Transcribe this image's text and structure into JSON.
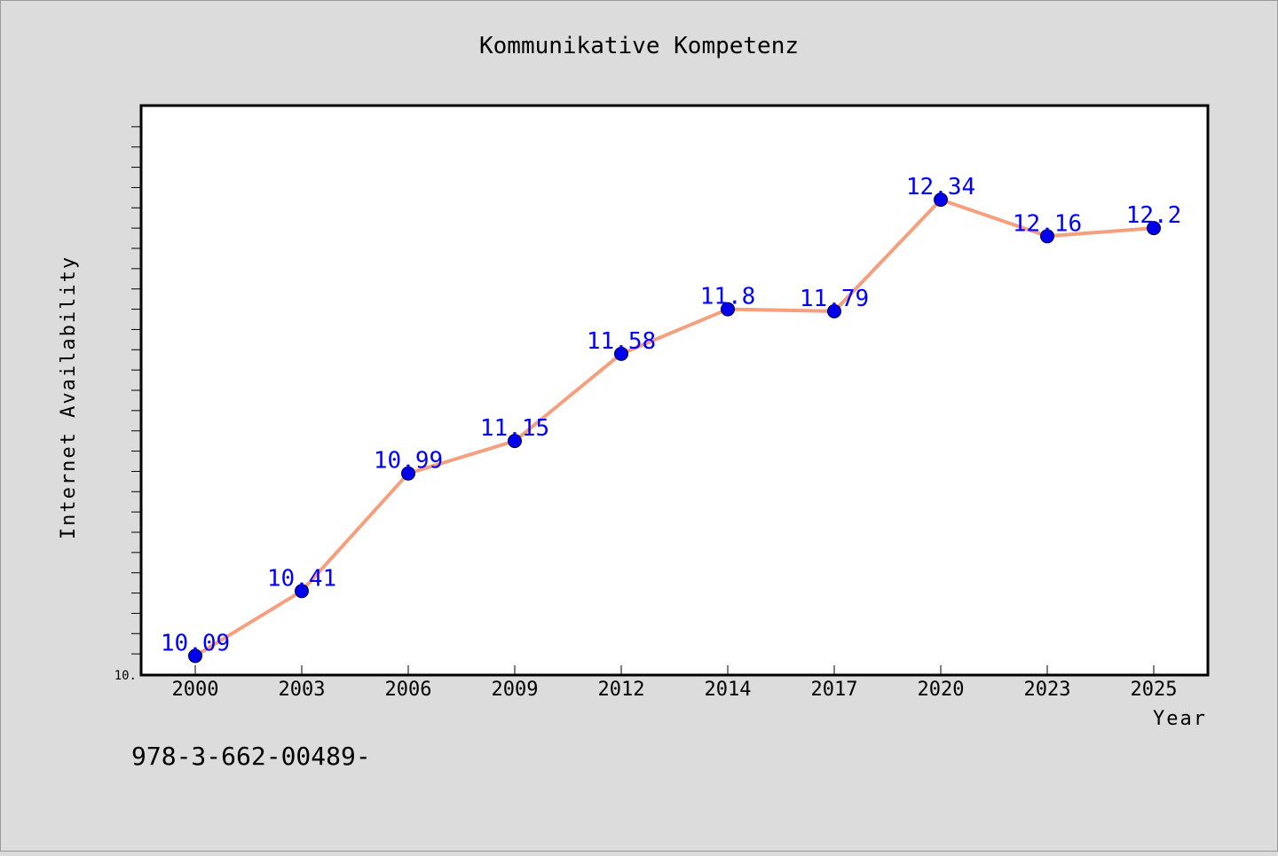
{
  "chart_data": {
    "type": "line",
    "title": "Kommunikative Kompetenz",
    "xlabel": "Year",
    "ylabel": "Internet Availability",
    "x": [
      "2000",
      "2003",
      "2006",
      "2009",
      "2012",
      "2014",
      "2017",
      "2020",
      "2023",
      "2025"
    ],
    "series": [
      {
        "values": [
          10.09,
          10.41,
          10.99,
          11.15,
          11.58,
          11.8,
          11.79,
          12.34,
          12.16,
          12.2
        ],
        "data_labels": [
          "10.09",
          "10.41",
          "10.99",
          "11.15",
          "11.58",
          "11.8",
          "11.79",
          "12.34",
          "12.16",
          "12.2"
        ]
      }
    ],
    "ylim": [
      10.0,
      12.8
    ],
    "y_tick_labels": [
      "10."
    ],
    "grid": false,
    "legend": "none",
    "colors": {
      "line": "#f4a07f",
      "marker": "#0000ee",
      "data_label": "#0000ff",
      "plot_bg": "#ffffff",
      "page_bg": "#dcdcdc"
    }
  },
  "footnote": "978-3-662-00489-"
}
